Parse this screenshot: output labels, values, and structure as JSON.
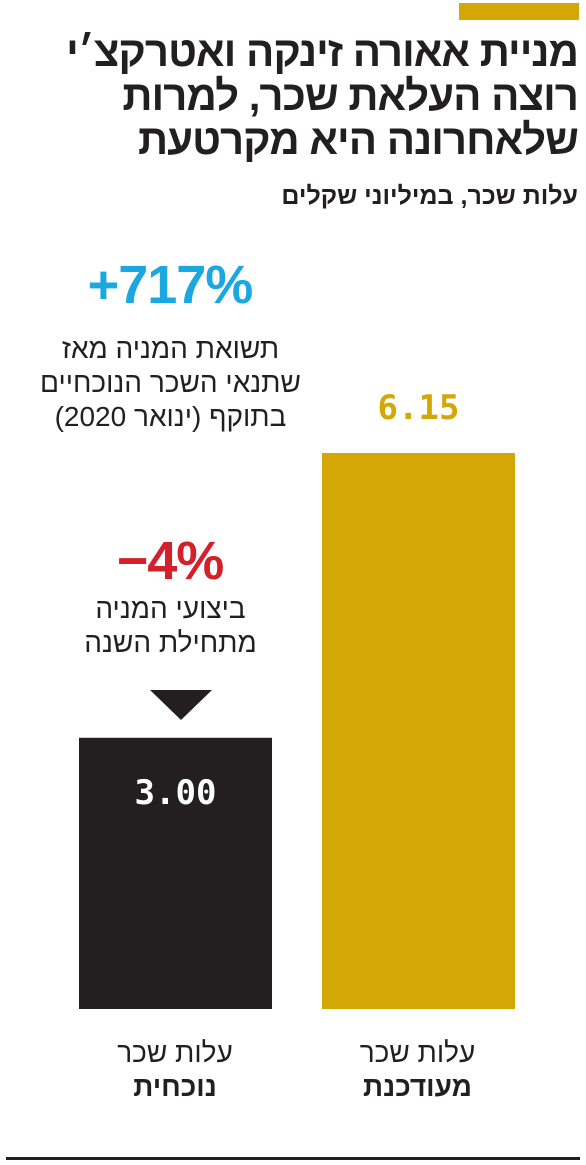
{
  "header": {
    "title": "מניית אאורה זינקה ואטרקצ׳י רוצה העלאת שכר, למרות שלאחרונה היא מקרטעת",
    "subtitle": "עלות שכר, במיליוני שקלים"
  },
  "stats": {
    "increase": {
      "value": "+717%",
      "label": "תשואת המניה מאז שתנאי השכר הנוכחיים בתוקף (ינואר 2020)",
      "color": "#1ba8e0"
    },
    "decrease": {
      "value": "−4%",
      "label": "ביצועי המניה מתחילת השנה",
      "color": "#d3202b"
    }
  },
  "colors": {
    "accent": "#d3a806",
    "dark": "#231f20",
    "blue": "#1ba8e0",
    "red": "#d3202b"
  },
  "chart_data": {
    "type": "bar",
    "title": "מניית אאורה זינקה ואטרקצ׳י רוצה העלאת שכר, למרות שלאחרונה היא מקרטעת",
    "subtitle": "עלות שכר, במיליוני שקלים",
    "categories": [
      {
        "line1": "עלות שכר",
        "line2": "נוכחית"
      },
      {
        "line1": "עלות שכר",
        "line2": "מעודכנת"
      }
    ],
    "values": [
      3.0,
      6.15
    ],
    "value_labels": [
      "3.00",
      "6.15"
    ],
    "bar_colors": [
      "#231f20",
      "#d3a806"
    ],
    "ylim": [
      0,
      6.15
    ],
    "grid": false
  }
}
